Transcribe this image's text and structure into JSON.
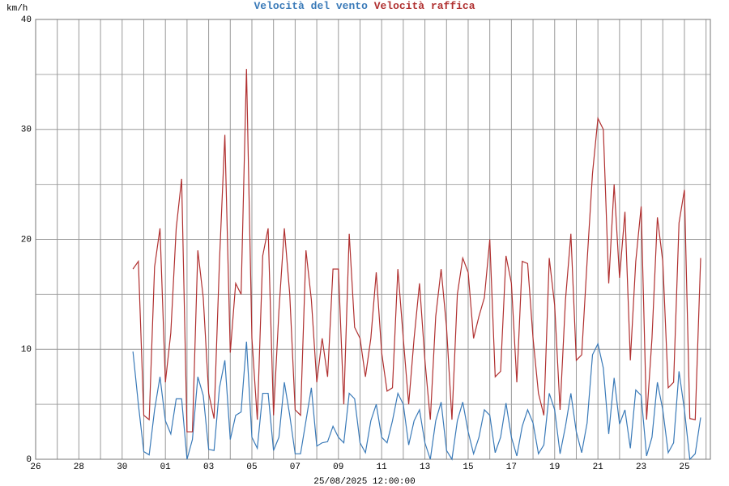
{
  "chart_data": {
    "type": "line",
    "y_unit": "km/h",
    "x_label": "25/08/2025 12:00:00",
    "categories": [
      "26",
      null,
      null,
      null,
      null,
      null,
      null,
      null,
      "28",
      null,
      null,
      null,
      null,
      null,
      null,
      null,
      "30",
      null,
      null,
      null,
      null,
      null,
      null,
      null,
      "01",
      null,
      null,
      null,
      null,
      null,
      null,
      null,
      "03",
      null,
      null,
      null,
      null,
      null,
      null,
      null,
      "05",
      null,
      null,
      null,
      null,
      null,
      null,
      null,
      "07",
      null,
      null,
      null,
      null,
      null,
      null,
      null,
      "09",
      null,
      null,
      null,
      null,
      null,
      null,
      null,
      "11",
      null,
      null,
      null,
      null,
      null,
      null,
      null,
      "13",
      null,
      null,
      null,
      null,
      null,
      null,
      null,
      "15",
      null,
      null,
      null,
      null,
      null,
      null,
      null,
      "17",
      null,
      null,
      null,
      null,
      null,
      null,
      null,
      "19",
      null,
      null,
      null,
      null,
      null,
      null,
      null,
      "21",
      null,
      null,
      null,
      null,
      null,
      null,
      null,
      "23",
      null,
      null,
      null,
      null,
      null,
      null,
      null,
      "25",
      null,
      null,
      null,
      null
    ],
    "series": [
      {
        "name": "Velocità del vento",
        "color": "#3a7ab8",
        "values": [
          null,
          null,
          null,
          null,
          null,
          null,
          null,
          null,
          null,
          null,
          null,
          null,
          null,
          null,
          null,
          null,
          null,
          null,
          9.8,
          5,
          0.7,
          0.4,
          4.5,
          7.5,
          3.5,
          2.3,
          5.5,
          5.5,
          0,
          1.8,
          7.5,
          5.8,
          0.9,
          0.8,
          6.5,
          9,
          1.8,
          4,
          4.3,
          10.7,
          2,
          1,
          6,
          6,
          0.8,
          2,
          7,
          4,
          0.5,
          0.5,
          3.5,
          6.5,
          1.2,
          1.5,
          1.6,
          3,
          2,
          1.5,
          6,
          5.5,
          1.5,
          0.6,
          3.5,
          5,
          2,
          1.5,
          3.5,
          6,
          5,
          1.3,
          3.5,
          4.5,
          1.5,
          0,
          3.5,
          5.2,
          0.8,
          0,
          3.5,
          5.2,
          2.5,
          0.5,
          2,
          4.5,
          4,
          0.6,
          2,
          5.1,
          2,
          0.3,
          3,
          4.5,
          3.3,
          0.5,
          1.3,
          6,
          4.5,
          0.5,
          3,
          6,
          2.5,
          0.6,
          3.3,
          9.5,
          10.5,
          8.3,
          2.3,
          7.4,
          3.2,
          4.5,
          1,
          6.3,
          5.8,
          0.3,
          2,
          7,
          4.5,
          0.6,
          1.5,
          8,
          4.5,
          0,
          0.5,
          3.8,
          null
        ]
      },
      {
        "name": "Velocità raffica",
        "color": "#b03030",
        "values": [
          null,
          null,
          null,
          null,
          null,
          null,
          null,
          null,
          null,
          null,
          null,
          null,
          null,
          null,
          null,
          null,
          null,
          null,
          17.3,
          18,
          4,
          3.6,
          17.5,
          21,
          7,
          11.5,
          21,
          25.5,
          2.5,
          2.5,
          19,
          14.7,
          6,
          3.7,
          18,
          29.5,
          9.7,
          16,
          15,
          35.5,
          11,
          3.6,
          18.5,
          21,
          4,
          13.5,
          21,
          15,
          4.5,
          4,
          19,
          14.5,
          7,
          11,
          7.5,
          17.3,
          17.3,
          5,
          20.5,
          12,
          11,
          7.5,
          11,
          17,
          9.7,
          6.2,
          6.5,
          17.3,
          11,
          5,
          11,
          16,
          9,
          3.6,
          13,
          17.3,
          12,
          3.6,
          15,
          18.3,
          17,
          11,
          13,
          14.7,
          20,
          7.5,
          8,
          18.5,
          16,
          7,
          18,
          17.8,
          11,
          6,
          4,
          18.3,
          14,
          4.5,
          14.5,
          20.5,
          9,
          9.5,
          18,
          26,
          31,
          30,
          16,
          25,
          16.5,
          22.5,
          9,
          18,
          23,
          3.6,
          11,
          22,
          18,
          6.5,
          7,
          21.5,
          24.5,
          3.7,
          3.6,
          18.3,
          null
        ]
      }
    ],
    "ylim": [
      0,
      40
    ],
    "yticks": [
      0,
      10,
      20,
      30,
      40
    ],
    "yminorticks": [
      5,
      15,
      25,
      35
    ],
    "grid": true
  }
}
